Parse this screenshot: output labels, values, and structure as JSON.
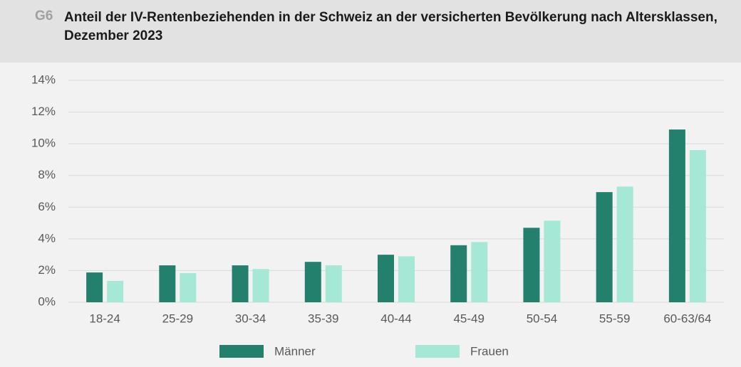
{
  "header": {
    "label": "G6"
  },
  "chart_data": {
    "type": "bar",
    "title": "Anteil der IV-Rentenbeziehenden in der Schweiz an der versicherten Bevölkerung nach Altersklassen, Dezember 2023",
    "categories": [
      "18-24",
      "25-29",
      "30-34",
      "35-39",
      "40-44",
      "45-49",
      "50-54",
      "55-59",
      "60-63/64"
    ],
    "series": [
      {
        "name": "Männer",
        "color": "#23806c",
        "values": [
          1.88,
          2.33,
          2.33,
          2.55,
          3.0,
          3.6,
          4.7,
          6.95,
          10.9
        ]
      },
      {
        "name": "Frauen",
        "color": "#a6e8d6",
        "values": [
          1.35,
          1.84,
          2.1,
          2.33,
          2.9,
          3.8,
          5.15,
          7.3,
          9.6
        ]
      }
    ],
    "ylim": [
      0,
      14
    ],
    "yticks": [
      {
        "value": 0,
        "label": "0%"
      },
      {
        "value": 2,
        "label": "2%"
      },
      {
        "value": 4,
        "label": "4%"
      },
      {
        "value": 6,
        "label": "6%"
      },
      {
        "value": 8,
        "label": "8%"
      },
      {
        "value": 10,
        "label": "10%"
      },
      {
        "value": 12,
        "label": "12%"
      },
      {
        "value": 14,
        "label": "14%"
      }
    ],
    "grid": true,
    "legend": "bottom"
  }
}
